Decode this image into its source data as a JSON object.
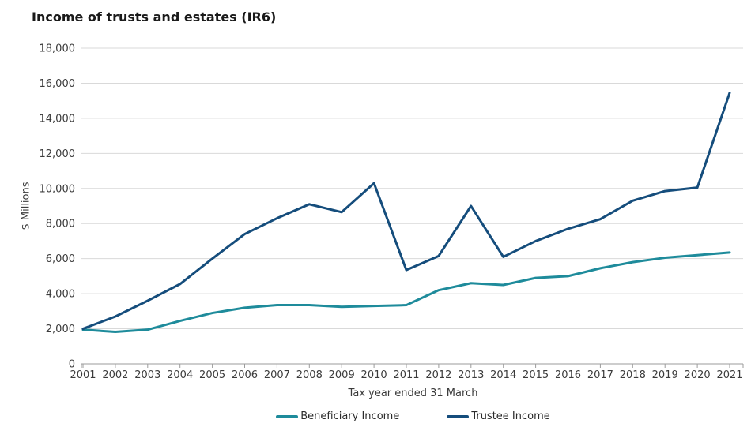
{
  "chart_data": {
    "type": "line",
    "title": "Income of trusts and estates (IR6)",
    "xlabel": "Tax year ended 31 March",
    "ylabel": "$ Millions",
    "categories": [
      "2001",
      "2002",
      "2003",
      "2004",
      "2005",
      "2006",
      "2007",
      "2008",
      "2009",
      "2010",
      "2011",
      "2012",
      "2013",
      "2014",
      "2015",
      "2016",
      "2017",
      "2018",
      "2019",
      "2020",
      "2021"
    ],
    "series": [
      {
        "name": "Beneficiary Income",
        "color": "#1e8b9b",
        "values": [
          1950,
          1820,
          1950,
          2450,
          2900,
          3200,
          3350,
          3350,
          3250,
          3300,
          3350,
          4200,
          4600,
          4500,
          4900,
          5000,
          5450,
          5800,
          6050,
          6200,
          6350
        ]
      },
      {
        "name": "Trustee Income",
        "color": "#154d7c",
        "values": [
          2000,
          2700,
          3600,
          4550,
          6000,
          7400,
          8300,
          9100,
          8650,
          10300,
          5350,
          6150,
          9000,
          6100,
          7000,
          7700,
          8250,
          9300,
          9850,
          10050,
          15450
        ]
      }
    ],
    "ylim": [
      0,
      18000
    ],
    "ytick_step": 2000,
    "grid": "horizontal",
    "legend_position": "bottom",
    "axis_color": "#9b9b9b",
    "gridline_color": "#d9d9d9"
  }
}
